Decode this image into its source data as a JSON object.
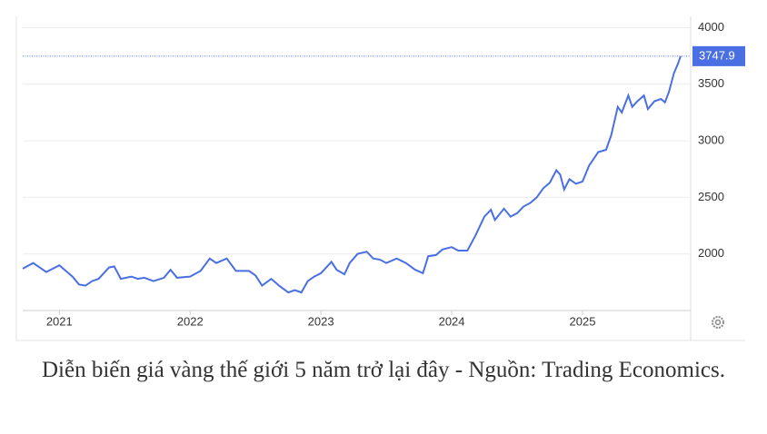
{
  "chart_data": {
    "type": "line",
    "color": "#4a6fe3",
    "grid": true,
    "caption": "Diễn biến giá vàng thế giới 5 năm trở lại đây - Nguồn: Trading Economics.",
    "x": [
      2020.72,
      2020.8,
      2020.85,
      2020.9,
      2020.95,
      2021.0,
      2021.05,
      2021.1,
      2021.15,
      2021.2,
      2021.25,
      2021.3,
      2021.38,
      2021.42,
      2021.47,
      2021.55,
      2021.6,
      2021.65,
      2021.72,
      2021.8,
      2021.85,
      2021.9,
      2022.0,
      2022.08,
      2022.15,
      2022.2,
      2022.28,
      2022.35,
      2022.45,
      2022.5,
      2022.55,
      2022.62,
      2022.68,
      2022.75,
      2022.8,
      2022.85,
      2022.9,
      2022.95,
      2023.0,
      2023.08,
      2023.12,
      2023.18,
      2023.22,
      2023.28,
      2023.35,
      2023.4,
      2023.45,
      2023.5,
      2023.58,
      2023.65,
      2023.72,
      2023.78,
      2023.82,
      2023.88,
      2023.93,
      2024.0,
      2024.05,
      2024.12,
      2024.18,
      2024.25,
      2024.3,
      2024.33,
      2024.4,
      2024.45,
      2024.5,
      2024.55,
      2024.6,
      2024.65,
      2024.7,
      2024.75,
      2024.8,
      2024.83,
      2024.86,
      2024.9,
      2024.95,
      2025.0,
      2025.05,
      2025.12,
      2025.18,
      2025.22,
      2025.27,
      2025.3,
      2025.35,
      2025.38,
      2025.42,
      2025.47,
      2025.5,
      2025.55,
      2025.6,
      2025.63,
      2025.66,
      2025.7,
      2025.73,
      2025.75
    ],
    "values": [
      1870,
      1920,
      1880,
      1840,
      1870,
      1900,
      1850,
      1800,
      1730,
      1720,
      1760,
      1780,
      1880,
      1890,
      1780,
      1800,
      1780,
      1790,
      1760,
      1790,
      1860,
      1790,
      1800,
      1850,
      1960,
      1920,
      1960,
      1850,
      1850,
      1810,
      1720,
      1780,
      1720,
      1660,
      1680,
      1660,
      1760,
      1800,
      1830,
      1930,
      1860,
      1820,
      1920,
      2000,
      2020,
      1960,
      1950,
      1920,
      1960,
      1920,
      1860,
      1830,
      1980,
      1990,
      2040,
      2060,
      2030,
      2030,
      2160,
      2330,
      2390,
      2300,
      2400,
      2330,
      2360,
      2420,
      2450,
      2500,
      2580,
      2630,
      2740,
      2700,
      2570,
      2660,
      2620,
      2640,
      2780,
      2900,
      2920,
      3050,
      3300,
      3250,
      3400,
      3300,
      3350,
      3400,
      3280,
      3350,
      3370,
      3340,
      3430,
      3600,
      3680,
      3747.9
    ],
    "xlim": [
      2020.72,
      2025.82
    ],
    "xticks": [
      2021,
      2022,
      2023,
      2024,
      2025
    ],
    "ylim": [
      1500,
      4100
    ],
    "yticks": [
      2000,
      2500,
      3000,
      3500,
      4000
    ]
  }
}
